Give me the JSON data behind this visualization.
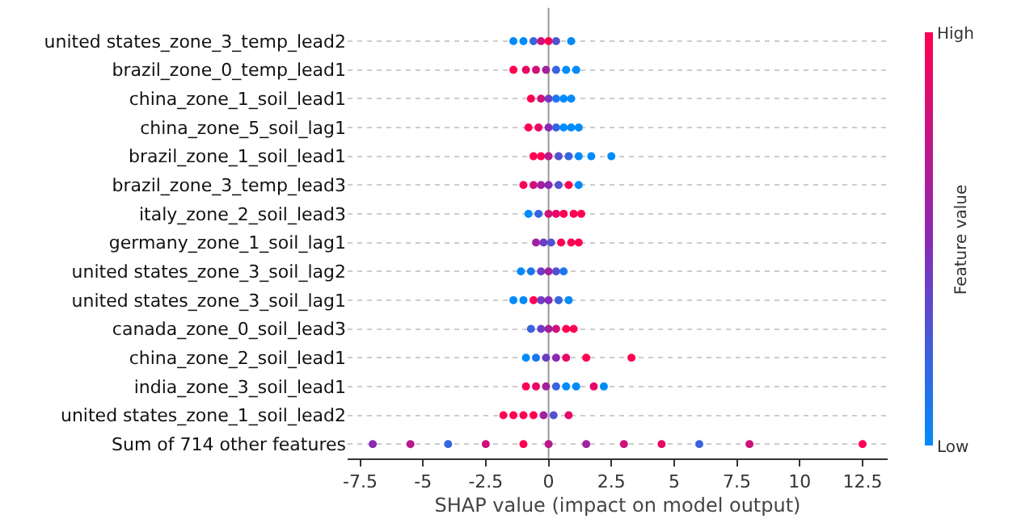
{
  "chart_data": {
    "type": "scatter",
    "orientation": "horizontal",
    "xlabel": "SHAP value (impact on model output)",
    "clabel": "Feature value",
    "clim": [
      0,
      1
    ],
    "cticks": [
      {
        "value": 0,
        "label": "Low"
      },
      {
        "value": 1,
        "label": "High"
      }
    ],
    "xlim": [
      -8,
      13.5
    ],
    "xticks": [
      -7.5,
      -5.0,
      -2.5,
      0.0,
      2.5,
      5.0,
      7.5,
      10.0,
      12.5
    ],
    "grid": "y",
    "marker": "circle",
    "ref_lines": [
      {
        "axis": "x",
        "value": 0,
        "label": null
      }
    ],
    "categories": [
      "united states_zone_3_temp_lead2",
      "brazil_zone_0_temp_lead1",
      "china_zone_1_soil_lead1",
      "china_zone_5_soil_lag1",
      "brazil_zone_1_soil_lead1",
      "brazil_zone_3_temp_lead3",
      "italy_zone_2_soil_lead3",
      "germany_zone_1_soil_lag1",
      "united states_zone_3_soil_lag2",
      "united states_zone_3_soil_lag1",
      "canada_zone_0_soil_lead3",
      "china_zone_2_soil_lead1",
      "india_zone_3_soil_lead1",
      "united states_zone_1_soil_lead2",
      "Sum of 714 other features"
    ],
    "series": [
      {
        "values": [
          -1.4,
          -1.4,
          -0.7,
          -0.8,
          -0.6,
          -1.0,
          -0.8,
          -0.5,
          -1.1,
          -1.4,
          -0.7,
          -0.9,
          -0.9,
          -1.8,
          -7
        ],
        "cvalues": [
          0,
          1,
          1,
          1,
          1,
          1,
          0,
          0.6,
          0,
          0,
          0.2,
          0,
          1,
          1,
          0.5
        ],
        "colors": [
          "#008bfb",
          "#ff0052",
          "#ff0052",
          "#ff0052",
          "#ff0052",
          "#ff0052",
          "#008bfb",
          "#a122a1",
          "#008bfb",
          "#008bfb",
          "#3764df",
          "#008bfb",
          "#ff0052",
          "#ff0052",
          "#8a2ab5"
        ]
      },
      {
        "values": [
          -1.0,
          -0.9,
          -0.3,
          -0.4,
          -0.3,
          -0.6,
          -0.4,
          -0.2,
          -0.7,
          -1.0,
          -0.3,
          -0.5,
          -0.5,
          -1.4,
          -5.5
        ],
        "cvalues": [
          0,
          0.9,
          0.8,
          0.9,
          1,
          0.8,
          0.2,
          0.4,
          0.1,
          0,
          0.4,
          0.1,
          0.9,
          1,
          0.7
        ],
        "colors": [
          "#008bfb",
          "#e80866",
          "#d0117a",
          "#e80866",
          "#ff0052",
          "#d0117a",
          "#3764df",
          "#6e3dc3",
          "#1c78ed",
          "#008bfb",
          "#6e3dc3",
          "#1c78ed",
          "#e80866",
          "#ff0052",
          "#b9198d"
        ]
      },
      {
        "values": [
          -0.6,
          -0.5,
          0,
          0,
          0,
          -0.3,
          0,
          0.1,
          -0.3,
          -0.6,
          0,
          -0.1,
          -0.1,
          -1.0,
          -4
        ],
        "cvalues": [
          0.2,
          0.8,
          0.4,
          0.5,
          0.7,
          0.6,
          0.8,
          0.3,
          0.4,
          1,
          0.6,
          0.4,
          0.6,
          1,
          0.2
        ],
        "colors": [
          "#3764df",
          "#d0117a",
          "#6e3dc3",
          "#8a2ab5",
          "#b9198d",
          "#a122a1",
          "#d0117a",
          "#5351d1",
          "#6e3dc3",
          "#ff0052",
          "#a122a1",
          "#6e3dc3",
          "#a122a1",
          "#ff0052",
          "#3764df"
        ]
      },
      {
        "values": [
          -0.3,
          -0.1,
          0.3,
          0.3,
          0.4,
          0,
          0.3,
          0.5,
          0,
          -0.3,
          0.3,
          0.3,
          0.3,
          -0.6,
          -2.5
        ],
        "cvalues": [
          0.8,
          0.6,
          0.1,
          0.2,
          0.3,
          0.5,
          0.9,
          1,
          0.6,
          0.4,
          0.8,
          0.5,
          0.2,
          1,
          0.8
        ],
        "colors": [
          "#d0117a",
          "#a122a1",
          "#1c78ed",
          "#3764df",
          "#5351d1",
          "#8a2ab5",
          "#e80866",
          "#ff0052",
          "#a122a1",
          "#6e3dc3",
          "#d0117a",
          "#8a2ab5",
          "#3764df",
          "#ff0052",
          "#d0117a"
        ]
      },
      {
        "values": [
          0,
          0.3,
          0.6,
          0.6,
          0.8,
          0.4,
          0.6,
          0.9,
          0.3,
          0,
          0.7,
          0.7,
          0.7,
          -0.2,
          -1
        ],
        "cvalues": [
          1,
          0.2,
          0,
          0,
          0.2,
          0.3,
          1,
          1,
          0.3,
          0.5,
          1,
          0.9,
          0,
          0.6,
          1
        ],
        "colors": [
          "#ff0052",
          "#3764df",
          "#008bfb",
          "#008bfb",
          "#3764df",
          "#5351d1",
          "#ff0052",
          "#ff0052",
          "#5351d1",
          "#8a2ab5",
          "#ff0052",
          "#e80866",
          "#008bfb",
          "#a122a1",
          "#ff0052"
        ]
      },
      {
        "values": [
          0.3,
          0.7,
          0.9,
          0.9,
          1.2,
          0.8,
          1.0,
          1.2,
          0.6,
          0.4,
          1.0,
          1.5,
          1.1,
          0.2,
          0
        ],
        "cvalues": [
          0.3,
          0,
          0,
          0,
          0,
          1,
          1,
          1,
          0.1,
          0.2,
          1,
          1,
          0,
          0.3,
          0.7
        ],
        "colors": [
          "#5351d1",
          "#008bfb",
          "#008bfb",
          "#008bfb",
          "#008bfb",
          "#ff0052",
          "#ff0052",
          "#ff0052",
          "#1c78ed",
          "#3764df",
          "#ff0052",
          "#ff0052",
          "#008bfb",
          "#5351d1",
          "#b9198d"
        ]
      },
      {
        "values": [
          0.9,
          1.1,
          null,
          1.2,
          1.7,
          1.2,
          1.3,
          null,
          null,
          0.8,
          null,
          3.3,
          1.8,
          0.8,
          1.5
        ],
        "cvalues": [
          0,
          0,
          null,
          0,
          0,
          0,
          1,
          null,
          null,
          0,
          null,
          1,
          0.9,
          0.9,
          0.6
        ],
        "colors": [
          "#008bfb",
          "#008bfb",
          null,
          "#008bfb",
          "#008bfb",
          "#008bfb",
          "#ff0052",
          null,
          null,
          "#008bfb",
          null,
          "#ff0052",
          "#e80866",
          "#e80866",
          "#a122a1"
        ]
      },
      {
        "values": [
          null,
          null,
          null,
          null,
          2.5,
          null,
          null,
          null,
          null,
          null,
          null,
          null,
          2.2,
          null,
          3
        ],
        "cvalues": [
          null,
          null,
          null,
          null,
          0,
          null,
          null,
          null,
          null,
          null,
          null,
          null,
          0,
          null,
          0.8
        ],
        "colors": [
          null,
          null,
          null,
          null,
          "#008bfb",
          null,
          null,
          null,
          null,
          null,
          null,
          null,
          "#008bfb",
          null,
          "#d0117a"
        ]
      },
      {
        "values": [
          null,
          null,
          null,
          null,
          null,
          null,
          null,
          null,
          null,
          null,
          null,
          null,
          null,
          null,
          4.5
        ],
        "cvalues": [
          null,
          null,
          null,
          null,
          null,
          null,
          null,
          null,
          null,
          null,
          null,
          null,
          null,
          null,
          0.9
        ],
        "color": "#e80866"
      },
      {
        "values": [
          null,
          null,
          null,
          null,
          null,
          null,
          null,
          null,
          null,
          null,
          null,
          null,
          null,
          null,
          6
        ],
        "cvalues": [
          null,
          null,
          null,
          null,
          null,
          null,
          null,
          null,
          null,
          null,
          null,
          null,
          null,
          null,
          0.2
        ],
        "color": "#3764df"
      },
      {
        "values": [
          null,
          null,
          null,
          null,
          null,
          null,
          null,
          null,
          null,
          null,
          null,
          null,
          null,
          null,
          8
        ],
        "cvalues": [
          null,
          null,
          null,
          null,
          null,
          null,
          null,
          null,
          null,
          null,
          null,
          null,
          null,
          null,
          0.8
        ],
        "color": "#d0117a"
      },
      {
        "values": [
          null,
          null,
          null,
          null,
          null,
          null,
          null,
          null,
          null,
          null,
          null,
          null,
          null,
          null,
          12.5
        ],
        "cvalues": [
          null,
          null,
          null,
          null,
          null,
          null,
          null,
          null,
          null,
          null,
          null,
          null,
          null,
          null,
          1
        ],
        "color": "#ff0052"
      }
    ]
  }
}
